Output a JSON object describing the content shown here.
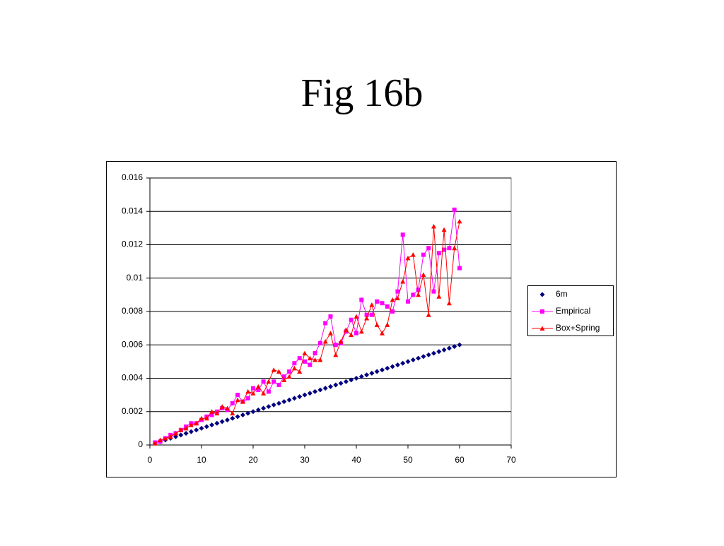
{
  "chart_data": {
    "type": "scatter",
    "title": "Fig 16b",
    "x": [
      1,
      2,
      3,
      4,
      5,
      6,
      7,
      8,
      9,
      10,
      11,
      12,
      13,
      14,
      15,
      16,
      17,
      18,
      19,
      20,
      21,
      22,
      23,
      24,
      25,
      26,
      27,
      28,
      29,
      30,
      31,
      32,
      33,
      34,
      35,
      36,
      37,
      38,
      39,
      40,
      41,
      42,
      43,
      44,
      45,
      46,
      47,
      48,
      49,
      50,
      51,
      52,
      53,
      54,
      55,
      56,
      57,
      58,
      59,
      60
    ],
    "series": [
      {
        "name": "6m",
        "color": "#000080",
        "marker": "diamond",
        "line": false,
        "values": [
          0.0001,
          0.0002,
          0.0003,
          0.0004,
          0.0005,
          0.0006,
          0.0007,
          0.0008,
          0.0009,
          0.001,
          0.0011,
          0.0012,
          0.0013,
          0.0014,
          0.0015,
          0.0016,
          0.0017,
          0.0018,
          0.0019,
          0.002,
          0.0021,
          0.0022,
          0.0023,
          0.0024,
          0.0025,
          0.0026,
          0.0027,
          0.0028,
          0.0029,
          0.003,
          0.0031,
          0.0032,
          0.0033,
          0.0034,
          0.0035,
          0.0036,
          0.0037,
          0.0038,
          0.0039,
          0.004,
          0.0041,
          0.0042,
          0.0043,
          0.0044,
          0.0045,
          0.0046,
          0.0047,
          0.0048,
          0.0049,
          0.005,
          0.0051,
          0.0052,
          0.0053,
          0.0054,
          0.0055,
          0.0056,
          0.0057,
          0.0058,
          0.0059,
          0.006
        ]
      },
      {
        "name": "Empirical",
        "color": "#ff00ff",
        "marker": "square",
        "line": true,
        "values": [
          0.00015,
          0.0002,
          0.0004,
          0.0006,
          0.0007,
          0.0009,
          0.0011,
          0.0013,
          0.0013,
          0.0015,
          0.0017,
          0.0018,
          0.002,
          0.0022,
          0.0021,
          0.0025,
          0.003,
          0.0026,
          0.0028,
          0.0034,
          0.0033,
          0.0038,
          0.0032,
          0.0038,
          0.0036,
          0.0041,
          0.0044,
          0.0049,
          0.0052,
          0.005,
          0.0048,
          0.0055,
          0.0061,
          0.0073,
          0.0077,
          0.006,
          0.0061,
          0.0068,
          0.0075,
          0.0067,
          0.0087,
          0.0078,
          0.0078,
          0.0086,
          0.0085,
          0.0083,
          0.008,
          0.0092,
          0.0126,
          0.0086,
          0.009,
          0.0093,
          0.0114,
          0.0118,
          0.0092,
          0.0115,
          0.0117,
          0.0118,
          0.0141,
          0.0106
        ]
      },
      {
        "name": "Box+Spring",
        "color": "#ff0000",
        "marker": "triangle",
        "line": true,
        "values": [
          0.0001,
          0.0003,
          0.0004,
          0.0005,
          0.0007,
          0.0009,
          0.001,
          0.0012,
          0.0013,
          0.0016,
          0.0016,
          0.002,
          0.0019,
          0.0023,
          0.0022,
          0.0019,
          0.0027,
          0.0026,
          0.0032,
          0.0031,
          0.0035,
          0.0031,
          0.0038,
          0.0045,
          0.0044,
          0.0039,
          0.0041,
          0.0046,
          0.0044,
          0.0055,
          0.0052,
          0.0051,
          0.0051,
          0.0062,
          0.0067,
          0.0054,
          0.0062,
          0.0069,
          0.0066,
          0.0077,
          0.0068,
          0.0076,
          0.0084,
          0.0072,
          0.0067,
          0.0072,
          0.0087,
          0.0088,
          0.0098,
          0.0112,
          0.0114,
          0.009,
          0.0102,
          0.0078,
          0.0131,
          0.0089,
          0.0129,
          0.0085,
          0.0118,
          0.0134
        ]
      }
    ],
    "xlim": [
      0,
      70
    ],
    "xticks": [
      0,
      10,
      20,
      30,
      40,
      50,
      60,
      70
    ],
    "ylim": [
      0,
      0.016
    ],
    "yticks": [
      0,
      0.002,
      0.004,
      0.006,
      0.008,
      0.01,
      0.012,
      0.014,
      0.016
    ],
    "grid": true,
    "legend": "right"
  }
}
